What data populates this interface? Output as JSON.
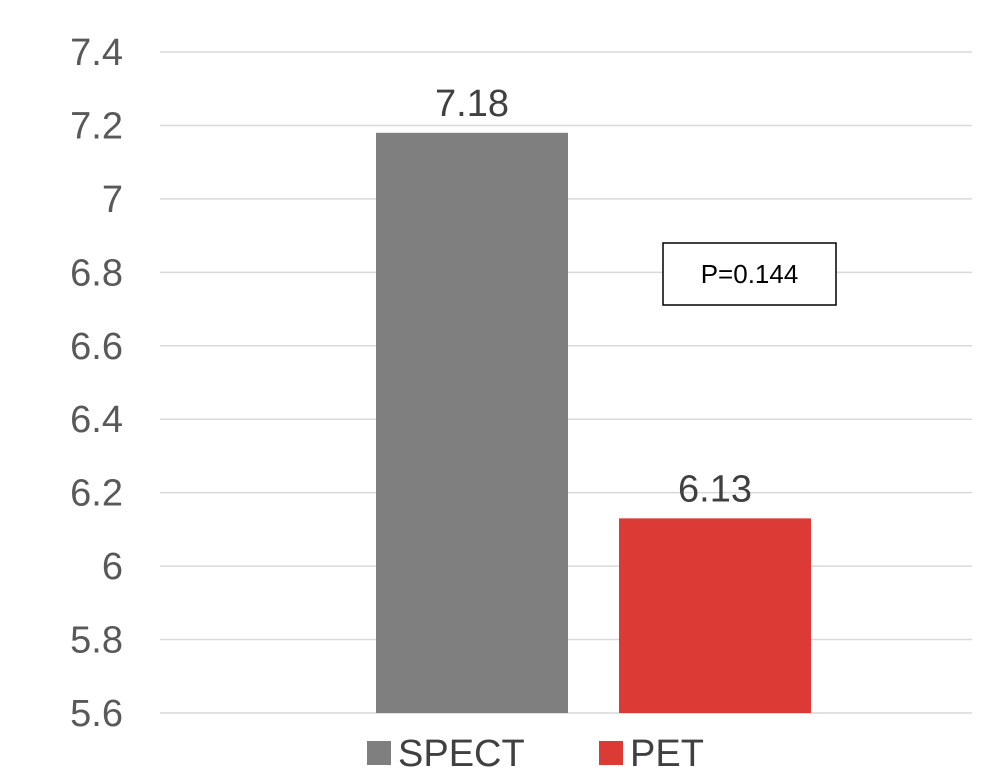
{
  "chart_data": {
    "type": "bar",
    "title": "",
    "xlabel": "",
    "ylabel": "",
    "ylim": [
      5.6,
      7.4
    ],
    "yticks": [
      "5.6",
      "5.8",
      "6",
      "6.2",
      "6.4",
      "6.6",
      "6.8",
      "7",
      "7.2",
      "7.4"
    ],
    "grid": true,
    "legend_position": "bottom",
    "series": [
      {
        "name": "SPECT",
        "values": [
          7.18
        ],
        "color": "#7f7f7f",
        "label": "7.18"
      },
      {
        "name": "PET",
        "values": [
          6.13
        ],
        "color": "#dc3a35",
        "label": "6.13"
      }
    ],
    "annotation": "P=0.144"
  }
}
